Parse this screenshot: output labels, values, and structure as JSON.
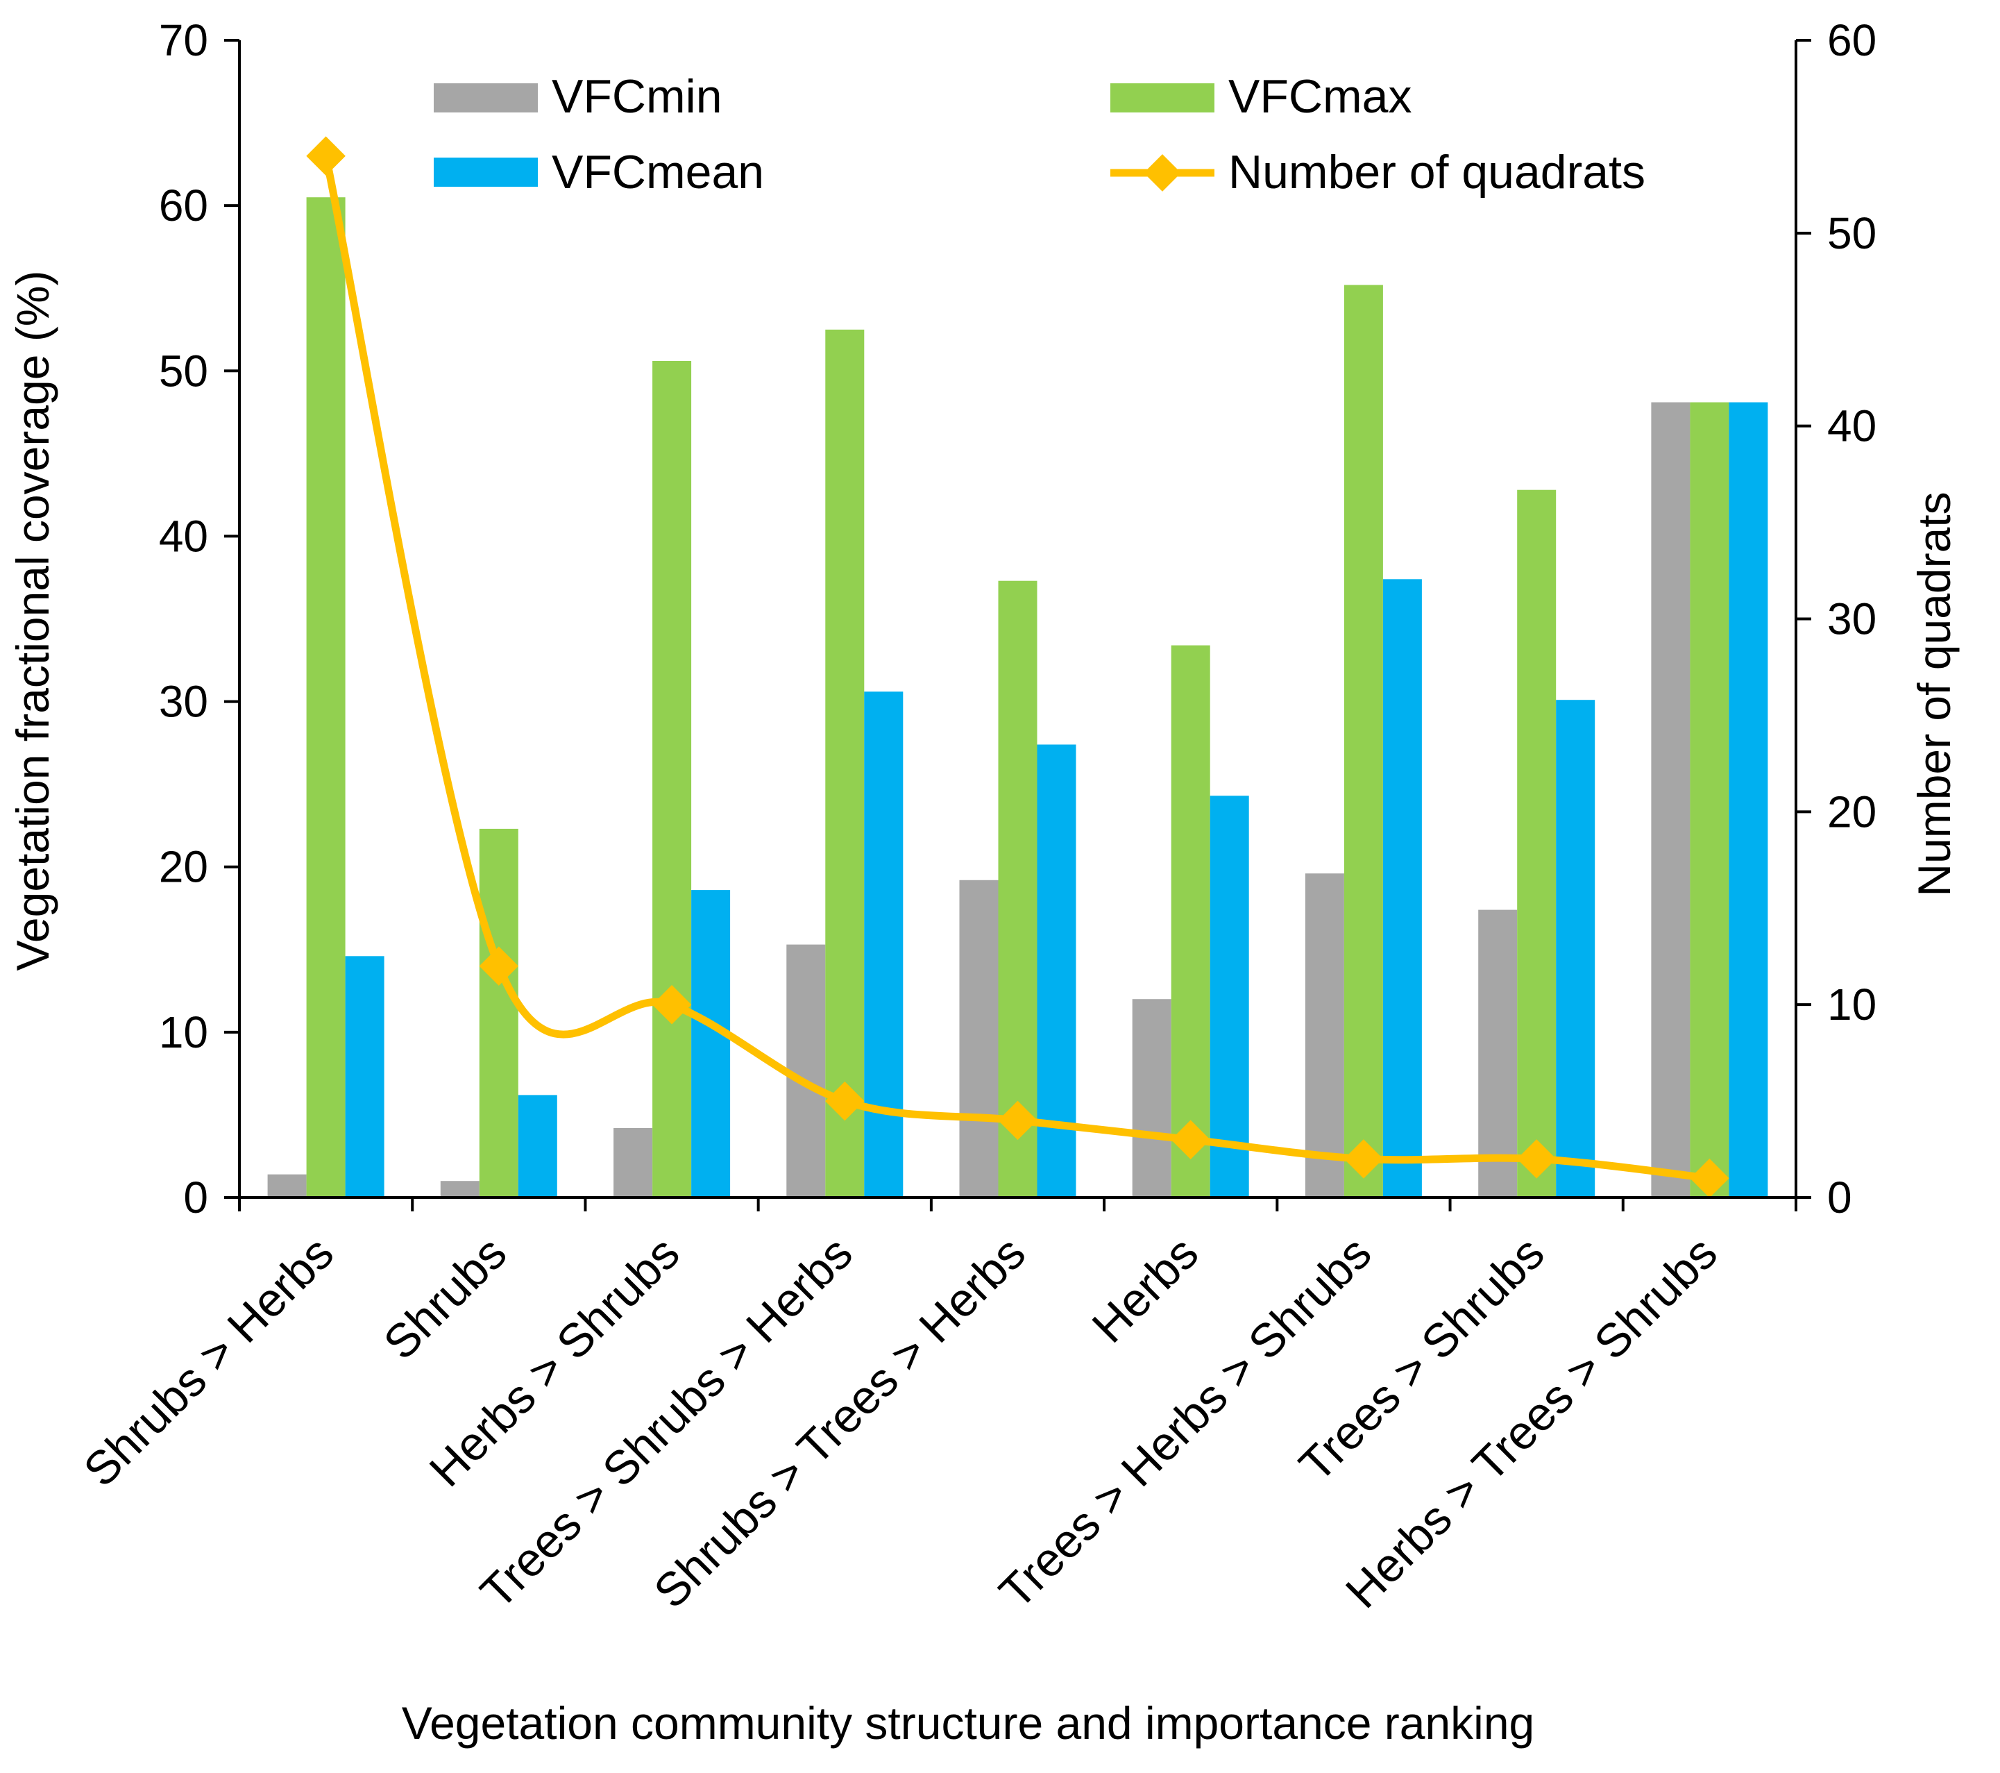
{
  "chart_data": {
    "type": "bar",
    "categories": [
      "Shrubs > Herbs",
      "Shrubs",
      "Herbs > Shrubs",
      "Trees > Shrubs > Herbs",
      "Shrubs > Trees > Herbs",
      "Herbs",
      "Trees > Herbs > Shrubs",
      "Trees > Shrubs",
      "Herbs > Trees > Shrubs"
    ],
    "series": [
      {
        "name": "VFCmin",
        "axis": "left",
        "color": "#a6a6a6",
        "values": [
          1.4,
          1.0,
          4.2,
          15.3,
          19.2,
          12.0,
          19.6,
          17.4,
          48.1
        ]
      },
      {
        "name": "VFCmax",
        "axis": "left",
        "color": "#92d050",
        "values": [
          60.5,
          22.3,
          50.6,
          52.5,
          37.3,
          33.4,
          55.2,
          42.8,
          48.1
        ]
      },
      {
        "name": "VFCmean",
        "axis": "left",
        "color": "#00b0f0",
        "values": [
          14.6,
          6.2,
          18.6,
          30.6,
          27.4,
          24.3,
          37.4,
          30.1,
          48.1
        ]
      },
      {
        "name": "Number of quadrats",
        "axis": "right",
        "type": "line",
        "color": "#ffc000",
        "values": [
          54,
          12,
          10,
          5,
          4,
          3,
          2,
          2,
          1
        ]
      }
    ],
    "xlabel": "Vegetation community structure and importance ranking",
    "ylabel": "Vegetation fractional coverage (%)",
    "y2label": "Number of quadrats",
    "ylim": [
      0,
      70
    ],
    "y2lim": [
      0,
      60
    ],
    "yticks": [
      0,
      10,
      20,
      30,
      40,
      50,
      60,
      70
    ],
    "y2ticks": [
      0,
      10,
      20,
      30,
      40,
      50,
      60
    ],
    "grid": false,
    "legend": {
      "placement": "top",
      "entries": [
        "VFCmin",
        "VFCmax",
        "VFCmean",
        "Number of quadrats"
      ]
    }
  }
}
